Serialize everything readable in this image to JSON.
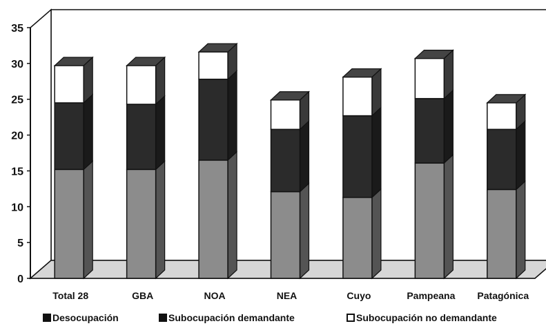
{
  "chart_data": {
    "type": "bar",
    "stacked": true,
    "three_d": true,
    "categories": [
      "Total 28",
      "GBA",
      "NOA",
      "NEA",
      "Cuyo",
      "Pampeana",
      "Patagónica"
    ],
    "series": [
      {
        "name": "Desocupación",
        "values": [
          15.2,
          15.2,
          16.5,
          12.1,
          11.3,
          16.1,
          12.4
        ],
        "color": "#8c8c8c"
      },
      {
        "name": "Subocupación demandante",
        "values": [
          9.3,
          9.1,
          11.3,
          8.7,
          11.4,
          9.0,
          8.4
        ],
        "color": "#2b2b2b"
      },
      {
        "name": "Subocupación no demandante",
        "values": [
          5.2,
          5.4,
          3.8,
          4.1,
          5.4,
          5.6,
          3.7
        ],
        "color": "#ffffff"
      }
    ],
    "yticks": [
      0,
      5,
      10,
      15,
      20,
      25,
      30,
      35
    ],
    "ylim": [
      0,
      35
    ],
    "grid": false,
    "legend_position": "bottom"
  }
}
